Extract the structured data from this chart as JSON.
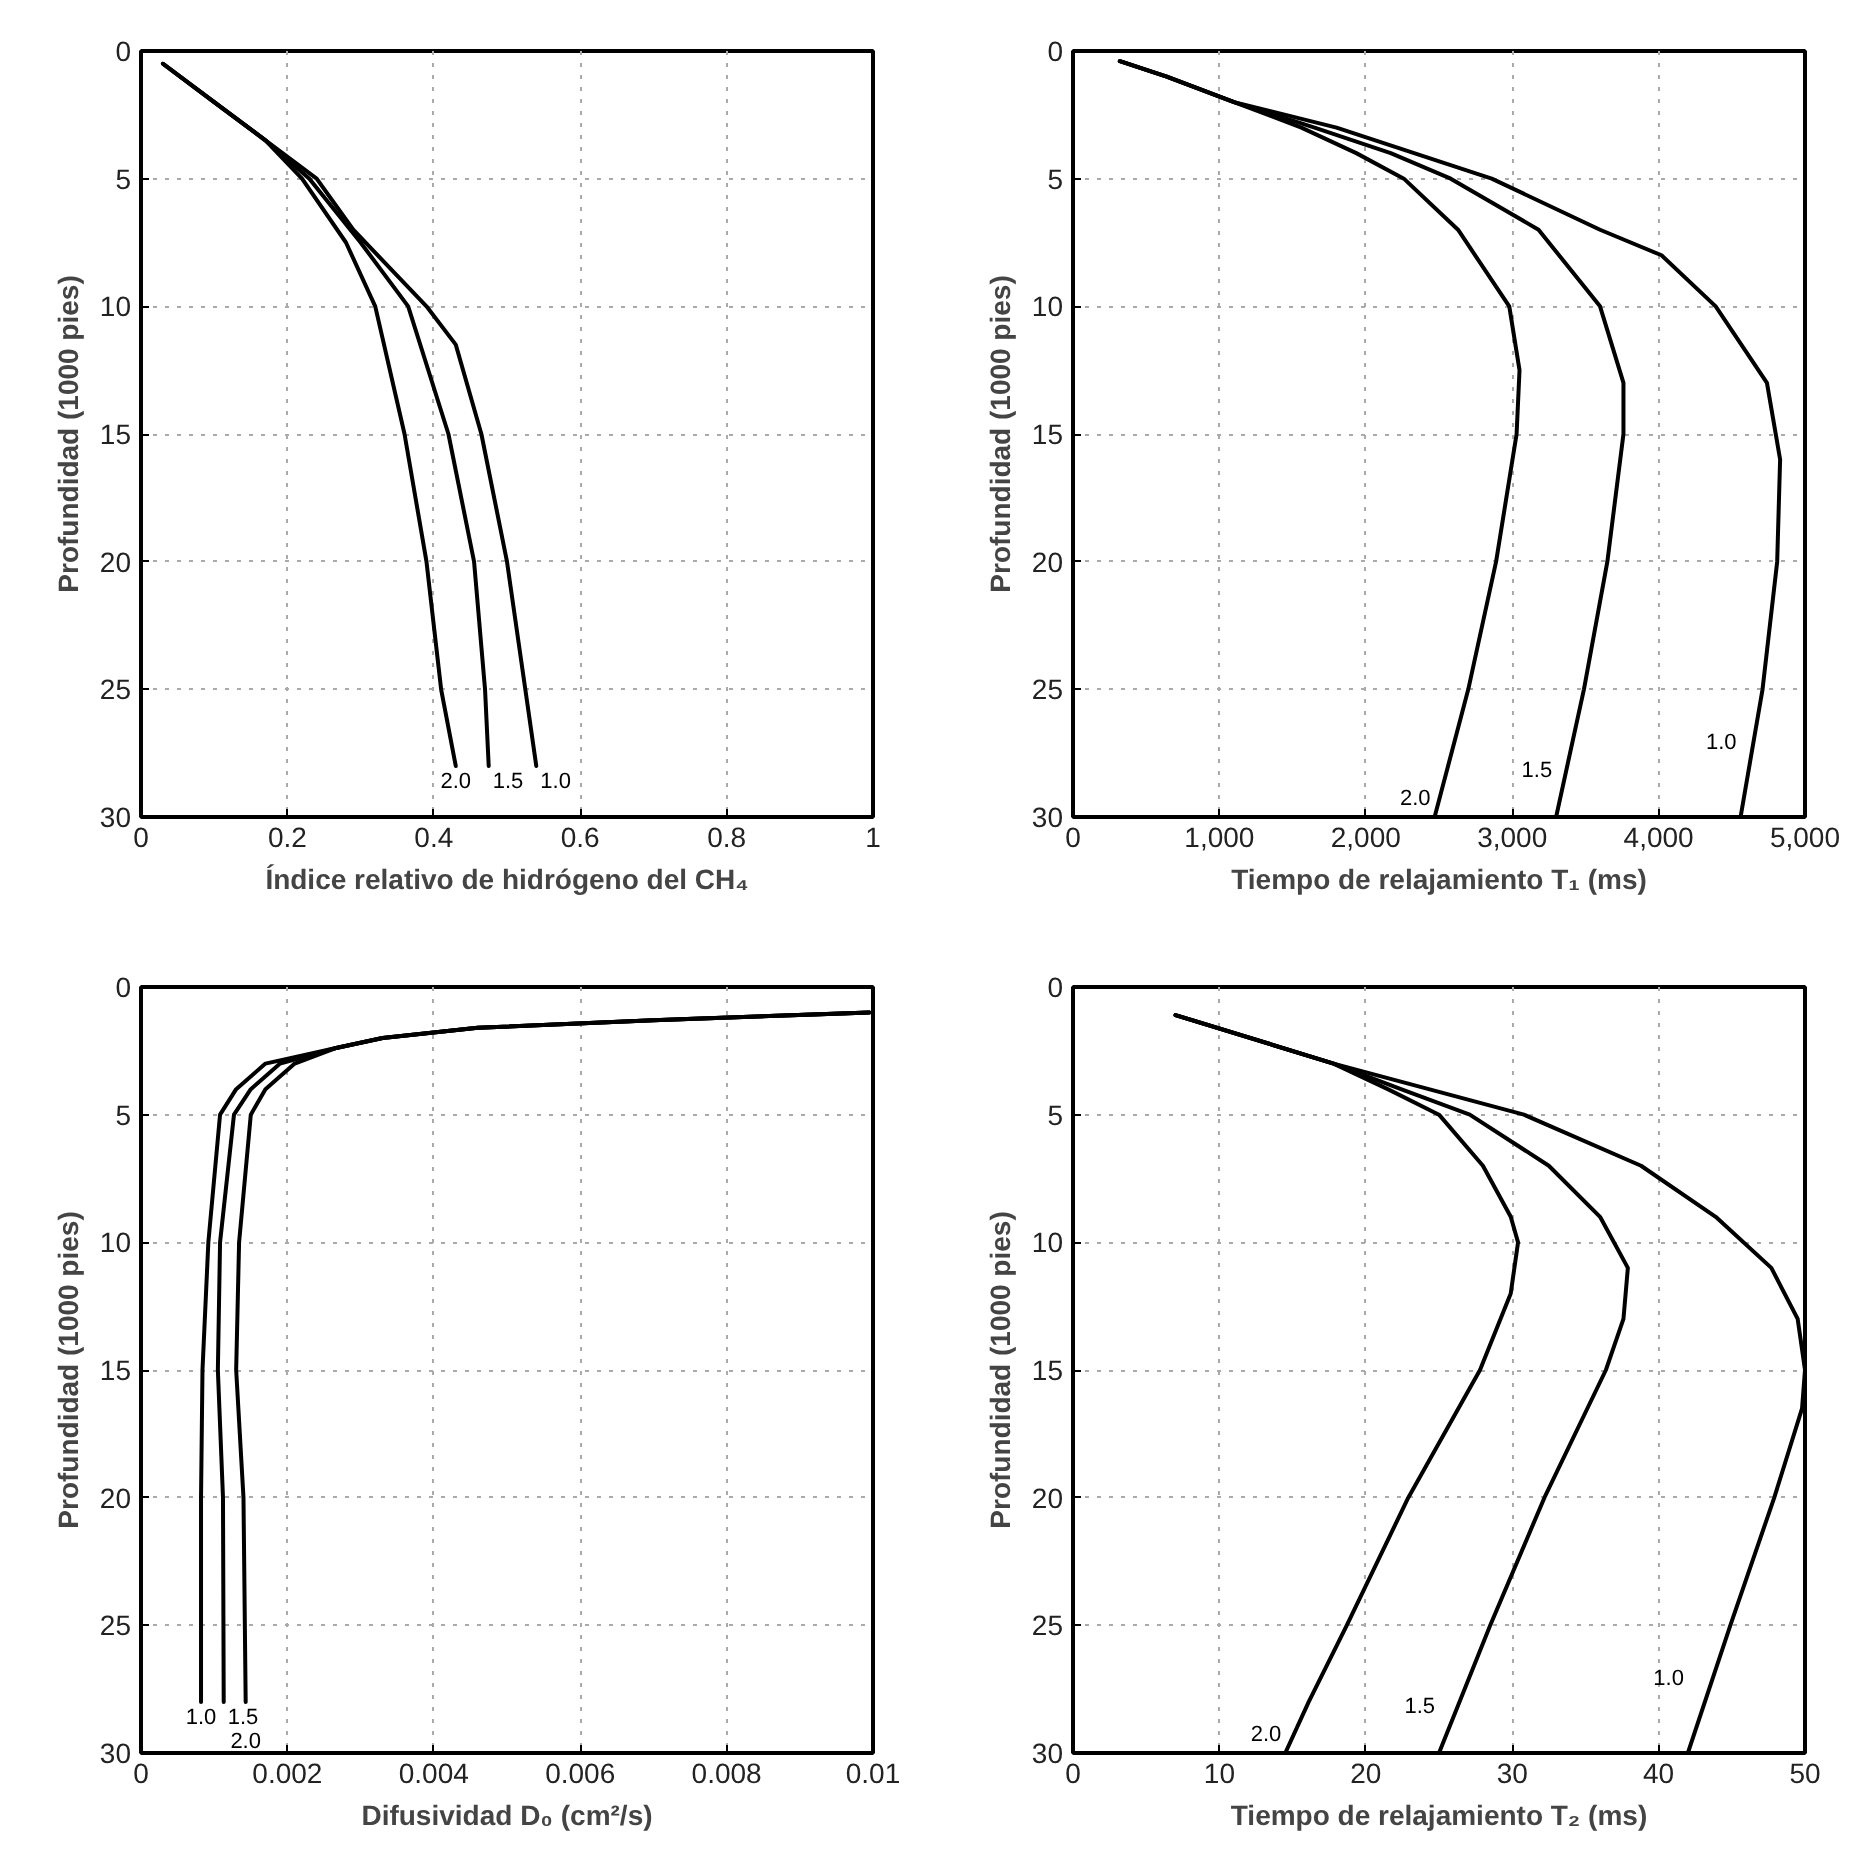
{
  "chart_data": [
    {
      "type": "line",
      "xlabel": "Índice relativo de hidrógeno del CH₄",
      "ylabel": "Profundidad (1000 pies)",
      "xlim": [
        0,
        1
      ],
      "xticks": [
        0,
        0.2,
        0.4,
        0.6,
        0.8,
        1
      ],
      "ylim": [
        30,
        0
      ],
      "yticks": [
        0,
        5,
        10,
        15,
        20,
        25,
        30
      ],
      "grid": true,
      "line_style": "solid",
      "series": [
        {
          "name": "2.0",
          "color": "#000000",
          "x": [
            0.03,
            0.1,
            0.17,
            0.22,
            0.28,
            0.32,
            0.36,
            0.39,
            0.41,
            0.43
          ],
          "values": [
            0.5,
            2,
            3.5,
            5,
            7.5,
            10,
            15,
            20,
            25,
            28
          ]
        },
        {
          "name": "1.5",
          "color": "#000000",
          "x": [
            0.03,
            0.1,
            0.17,
            0.23,
            0.3,
            0.365,
            0.42,
            0.455,
            0.47,
            0.475
          ],
          "values": [
            0.5,
            2,
            3.5,
            5,
            7.5,
            10,
            15,
            20,
            25,
            28
          ]
        },
        {
          "name": "1.0",
          "color": "#000000",
          "x": [
            0.03,
            0.1,
            0.17,
            0.24,
            0.29,
            0.39,
            0.43,
            0.465,
            0.5,
            0.525,
            0.54
          ],
          "values": [
            0.5,
            2,
            3.5,
            5,
            7,
            10,
            11.5,
            15,
            20,
            25,
            28
          ]
        }
      ]
    },
    {
      "type": "line",
      "xlabel": "Tiempo de relajamiento T₁ (ms)",
      "ylabel": "Profundidad (1000 pies)",
      "xlim": [
        0,
        5000
      ],
      "xticks": [
        0,
        {
          "value": 1000,
          "label": "1,000"
        },
        {
          "value": 2000,
          "label": "2,000"
        },
        {
          "value": 3000,
          "label": "3,000"
        },
        {
          "value": 4000,
          "label": "4,000"
        },
        {
          "value": 5000,
          "label": "5,000"
        }
      ],
      "ylim": [
        30,
        0
      ],
      "yticks": [
        0,
        5,
        10,
        15,
        20,
        25,
        30
      ],
      "grid": true,
      "line_style": "solid",
      "series": [
        {
          "name": "2.0",
          "color": "#000000",
          "x": [
            320,
            640,
            1100,
            1560,
            1935,
            2260,
            2630,
            2980,
            3050,
            3030,
            2890,
            2700,
            2470
          ],
          "values": [
            0.4,
            1,
            2,
            3,
            4,
            5,
            7,
            10,
            12.5,
            15,
            20,
            25,
            30
          ]
        },
        {
          "name": "1.5",
          "color": "#000000",
          "x": [
            320,
            640,
            1100,
            1650,
            2170,
            2580,
            3180,
            3600,
            3760,
            3760,
            3650,
            3490,
            3300
          ],
          "values": [
            0.4,
            1,
            2,
            3,
            4,
            5,
            7,
            10,
            13,
            15,
            20,
            25,
            30
          ]
        },
        {
          "name": "1.0",
          "color": "#000000",
          "x": [
            320,
            640,
            1100,
            1800,
            2860,
            3600,
            4020,
            4390,
            4740,
            4830,
            4810,
            4710,
            4560
          ],
          "values": [
            0.4,
            1,
            2,
            3,
            5,
            7,
            8,
            10,
            13,
            16,
            20,
            25,
            30
          ]
        }
      ]
    },
    {
      "type": "line",
      "xlabel": "Difusividad D₀ (cm²/s)",
      "ylabel": "Profundidad (1000 pies)",
      "xlim": [
        0,
        0.01
      ],
      "xticks": [
        0,
        0.002,
        0.004,
        0.006,
        0.008,
        0.01
      ],
      "ylim": [
        30,
        0
      ],
      "yticks": [
        0,
        5,
        10,
        15,
        20,
        25,
        30
      ],
      "grid": true,
      "line_style": "solid",
      "series": [
        {
          "name": "1.0",
          "color": "#000000",
          "x": [
            0.00995,
            0.007,
            0.0046,
            0.0033,
            0.00265,
            0.0017,
            0.0013,
            0.00108,
            0.00092,
            0.00084,
            0.00082,
            0.00082
          ],
          "values": [
            1,
            1.3,
            1.6,
            2,
            2.4,
            3,
            4,
            5,
            10,
            15,
            20,
            28
          ]
        },
        {
          "name": "1.5",
          "color": "#000000",
          "x": [
            0.00995,
            0.007,
            0.0046,
            0.0033,
            0.00265,
            0.0019,
            0.0015,
            0.00127,
            0.00108,
            0.00105,
            0.00112,
            0.00113
          ],
          "values": [
            1,
            1.3,
            1.6,
            2,
            2.4,
            3,
            4,
            5,
            10,
            15,
            20,
            28
          ]
        },
        {
          "name": "2.0",
          "color": "#000000",
          "x": [
            0.00995,
            0.007,
            0.0046,
            0.0033,
            0.00265,
            0.0021,
            0.0017,
            0.0015,
            0.00134,
            0.0013,
            0.0014,
            0.00143
          ],
          "values": [
            1,
            1.3,
            1.6,
            2,
            2.4,
            3,
            4,
            5,
            10,
            15,
            20,
            28
          ]
        }
      ]
    },
    {
      "type": "line",
      "xlabel": "Tiempo de relajamiento T₂ (ms)",
      "ylabel": "Profundidad (1000 pies)",
      "xlim": [
        0,
        50
      ],
      "xticks": [
        0,
        10,
        20,
        30,
        40,
        50
      ],
      "ylim": [
        30,
        0
      ],
      "yticks": [
        0,
        5,
        10,
        15,
        20,
        25,
        30
      ],
      "grid": true,
      "line_style": "solid",
      "series": [
        {
          "name": "2.0",
          "color": "#000000",
          "x": [
            7,
            17.8,
            21.5,
            25,
            28,
            29.9,
            30.4,
            29.9,
            27.8,
            22.9,
            18.7,
            16.1,
            14.5
          ],
          "values": [
            1.1,
            3,
            4,
            5,
            7,
            9,
            10,
            12,
            15,
            20,
            25,
            28,
            30
          ]
        },
        {
          "name": "1.5",
          "color": "#000000",
          "x": [
            7,
            17.8,
            22.4,
            27.1,
            32.5,
            36,
            37.9,
            37.6,
            36.4,
            32.2,
            28.5,
            25
          ],
          "values": [
            1.1,
            3,
            4,
            5,
            7,
            9,
            11,
            13,
            15,
            20,
            25,
            30
          ]
        },
        {
          "name": "1.0",
          "color": "#000000",
          "x": [
            7,
            17.8,
            24.3,
            30.8,
            38.8,
            43.9,
            47.7,
            49.5,
            50,
            49.8,
            47.9,
            44.9,
            42
          ],
          "values": [
            1.1,
            3,
            4,
            5,
            7,
            9,
            11,
            13,
            15,
            16.5,
            20,
            25,
            30
          ]
        }
      ]
    }
  ]
}
